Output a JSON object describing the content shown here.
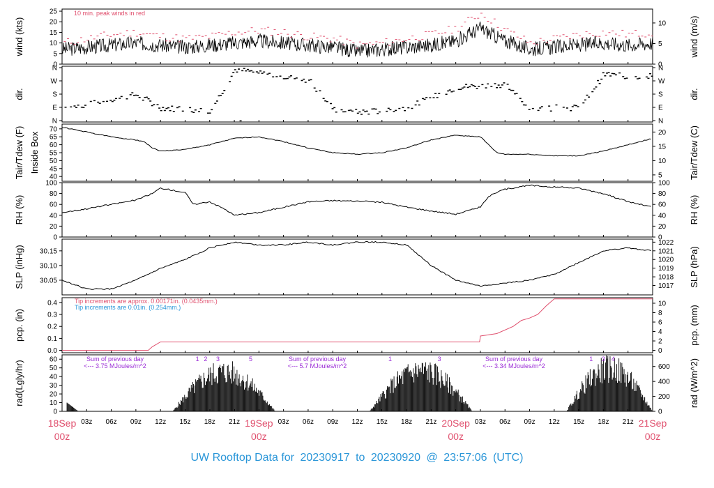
{
  "footer": {
    "title": "UW Rooftop Data for",
    "start": "20230917",
    "to": "to",
    "end": "20230920",
    "at": "@",
    "time": "23:57:06",
    "tz": "(UTC)"
  },
  "colors": {
    "trace": "#000000",
    "peak": "#e0506e",
    "pcp_old": "#e0506e",
    "pcp_new": "#2a96d8",
    "rad_note": "#9a2bd6",
    "day_label": "#e0506e",
    "title": "#2a96d8"
  },
  "chart_data": [
    {
      "type": "line",
      "id": "wind",
      "ylabel": "wind (kts)",
      "ylabel_right": "wind (m/s)",
      "ylim": [
        0,
        26
      ],
      "yticks": [
        0,
        5,
        10,
        15,
        20,
        25
      ],
      "right_ticks": [
        0,
        5,
        10
      ],
      "annotation": "10 min. peak winds in red",
      "series": [
        {
          "x": [
            0,
            3,
            6,
            9,
            12,
            15,
            18,
            21,
            24,
            27,
            30,
            33,
            36,
            39,
            42,
            45,
            48,
            51,
            54,
            57,
            60,
            63,
            66,
            69,
            72
          ],
          "values": [
            7,
            8,
            9,
            10,
            9,
            8,
            9,
            10,
            11,
            10,
            9,
            8,
            6,
            7,
            8,
            9,
            11,
            17,
            11,
            7,
            8,
            9,
            10,
            9,
            10
          ]
        },
        {
          "x": [
            0,
            3,
            6,
            9,
            12,
            15,
            18,
            21,
            24,
            27,
            30,
            33,
            36,
            39,
            42,
            45,
            48,
            51,
            54,
            57,
            60,
            63,
            66,
            69,
            72
          ],
          "values": [
            10,
            12,
            14,
            15,
            13,
            12,
            13,
            15,
            16,
            15,
            13,
            12,
            9,
            10,
            12,
            14,
            17,
            24,
            16,
            10,
            12,
            14,
            15,
            14,
            15
          ]
        }
      ]
    },
    {
      "type": "scatter",
      "id": "dir",
      "ylabel": "dir.",
      "ylabel_right": "dir.",
      "yticklabels": [
        "N",
        "E",
        "S",
        "W",
        "N"
      ],
      "series": [
        {
          "x": [
            0,
            3,
            6,
            9,
            12,
            15,
            18,
            21,
            24,
            27,
            30,
            33,
            36,
            39,
            42,
            45,
            48,
            51,
            54,
            57,
            60,
            63,
            66,
            69,
            72
          ],
          "values": [
            90,
            110,
            150,
            180,
            90,
            80,
            70,
            350,
            330,
            300,
            280,
            80,
            60,
            70,
            90,
            160,
            230,
            240,
            250,
            80,
            90,
            90,
            320,
            300,
            310
          ]
        }
      ]
    },
    {
      "type": "line",
      "id": "temp",
      "ylabel": "Tair/Tdew (F)",
      "ylabel2": "Inside Box",
      "ylabel_right": "Tair/Tdew (C)",
      "ylim": [
        37,
        73
      ],
      "yticks": [
        40,
        45,
        50,
        55,
        60,
        65,
        70
      ],
      "right_ticks": [
        5,
        10,
        15,
        20
      ],
      "series": [
        {
          "x": [
            0,
            3,
            6,
            9,
            10,
            11,
            12,
            15,
            18,
            21,
            24,
            27,
            30,
            33,
            36,
            39,
            42,
            45,
            48,
            51,
            52,
            53,
            54,
            57,
            60,
            63,
            66,
            69,
            72
          ],
          "values": [
            71,
            68,
            65,
            63,
            62,
            58,
            56,
            57,
            60,
            64,
            65,
            62,
            58,
            55,
            54,
            55,
            58,
            63,
            66,
            65,
            60,
            55,
            54,
            54,
            53,
            53,
            56,
            60,
            64
          ]
        }
      ]
    },
    {
      "type": "line",
      "id": "rh",
      "ylabel": "RH (%)",
      "ylabel_right": "RH (%)",
      "ylim": [
        0,
        100
      ],
      "yticks": [
        0,
        20,
        40,
        60,
        80,
        100
      ],
      "right_ticks": [
        0,
        20,
        40,
        60,
        80,
        100
      ],
      "series": [
        {
          "x": [
            0,
            3,
            6,
            9,
            11,
            12,
            15,
            16,
            18,
            20,
            21,
            24,
            27,
            30,
            33,
            36,
            39,
            42,
            45,
            48,
            51,
            52,
            54,
            57,
            60,
            63,
            66,
            69,
            72
          ],
          "values": [
            45,
            52,
            60,
            68,
            80,
            90,
            82,
            60,
            65,
            50,
            40,
            45,
            55,
            65,
            67,
            66,
            64,
            55,
            48,
            42,
            55,
            75,
            88,
            95,
            92,
            90,
            80,
            65,
            55
          ]
        }
      ]
    },
    {
      "type": "line",
      "id": "slp",
      "ylabel": "SLP (inHg)",
      "ylabel_right": "SLP (hPa)",
      "ylim": [
        30.0,
        30.19
      ],
      "yticks": [
        30.05,
        30.1,
        30.15
      ],
      "right_ticks": [
        1017,
        1018,
        1019,
        1020,
        1021,
        1022
      ],
      "series": [
        {
          "x": [
            0,
            3,
            6,
            9,
            12,
            15,
            18,
            21,
            24,
            27,
            30,
            33,
            36,
            39,
            42,
            45,
            48,
            51,
            54,
            57,
            60,
            63,
            66,
            69,
            72
          ],
          "values": [
            30.05,
            30.02,
            30.02,
            30.05,
            30.09,
            30.12,
            30.16,
            30.18,
            30.17,
            30.17,
            30.18,
            30.17,
            30.18,
            30.18,
            30.17,
            30.1,
            30.05,
            30.03,
            30.04,
            30.05,
            30.07,
            30.11,
            30.15,
            30.16,
            30.15
          ]
        }
      ]
    },
    {
      "type": "line",
      "id": "pcp",
      "ylabel": "pcp. (in)",
      "ylabel_right": "pcp. (mm)",
      "ylim": [
        -0.02,
        0.44
      ],
      "yticks": [
        0.0,
        0.1,
        0.2,
        0.3,
        0.4
      ],
      "right_ticks": [
        0,
        2,
        4,
        6,
        8,
        10
      ],
      "annotation_old": "Tip increments are approx. 0.00171in. (0.0435mm.)",
      "annotation_new": "Tip increments are 0.01in. (0.254mm.)",
      "series": [
        {
          "x": [
            0,
            10.5,
            11,
            12,
            30,
            50.9,
            51,
            52,
            53,
            55,
            56,
            57,
            58,
            59,
            60,
            72
          ],
          "values": [
            0,
            0,
            0.03,
            0.07,
            0.07,
            0.07,
            0.12,
            0.13,
            0.14,
            0.2,
            0.25,
            0.27,
            0.3,
            0.37,
            0.43,
            0.43
          ]
        }
      ]
    },
    {
      "type": "bar",
      "id": "rad",
      "ylabel": "rad(Lgly/hr)",
      "ylabel_right": "rad (W/m^2)",
      "ylim": [
        0,
        65
      ],
      "yticks": [
        0,
        10,
        20,
        30,
        40,
        50,
        60
      ],
      "right_ticks": [
        0,
        200,
        400,
        600
      ],
      "notes": [
        {
          "line1": "Sum of previous day",
          "line2": "<--- 3.75 MJoules/m^2"
        },
        {
          "line1": "Sum of previous day",
          "line2": "<--- 5.7 MJoules/m^2"
        },
        {
          "line1": "Sum of previous day",
          "line2": "<--- 3.34 MJoules/m^2"
        }
      ],
      "markers": [
        {
          "x": 16.5,
          "label": "1"
        },
        {
          "x": 17.5,
          "label": "2"
        },
        {
          "x": 19,
          "label": "3"
        },
        {
          "x": 23,
          "label": "5"
        },
        {
          "x": 40,
          "label": "1"
        },
        {
          "x": 46,
          "label": "3"
        },
        {
          "x": 64.5,
          "label": "1"
        },
        {
          "x": 66,
          "label": "3"
        },
        {
          "x": 67.2,
          "label": "4"
        }
      ],
      "days": [
        {
          "start": 13.5,
          "end": 26,
          "peak": 60
        },
        {
          "start": 37.5,
          "end": 50,
          "peak": 62
        },
        {
          "start": 61.5,
          "end": 72,
          "peak": 65
        }
      ]
    }
  ],
  "x_axis": {
    "hour_labels": [
      "03z",
      "06z",
      "09z",
      "12z",
      "15z",
      "18z",
      "21z",
      "03z",
      "06z",
      "09z",
      "12z",
      "15z",
      "18z",
      "21z",
      "03z",
      "06z",
      "09z",
      "12z",
      "15z",
      "18z",
      "21z"
    ],
    "hour_values": [
      3,
      6,
      9,
      12,
      15,
      18,
      21,
      27,
      30,
      33,
      36,
      39,
      42,
      45,
      51,
      54,
      57,
      60,
      63,
      66,
      69
    ],
    "day_labels": [
      {
        "date": "18Sep",
        "time": "00z"
      },
      {
        "date": "19Sep",
        "time": "00z"
      },
      {
        "date": "20Sep",
        "time": "00z"
      },
      {
        "date": "21Sep",
        "time": "00z"
      }
    ],
    "xlim": [
      0,
      72
    ]
  }
}
